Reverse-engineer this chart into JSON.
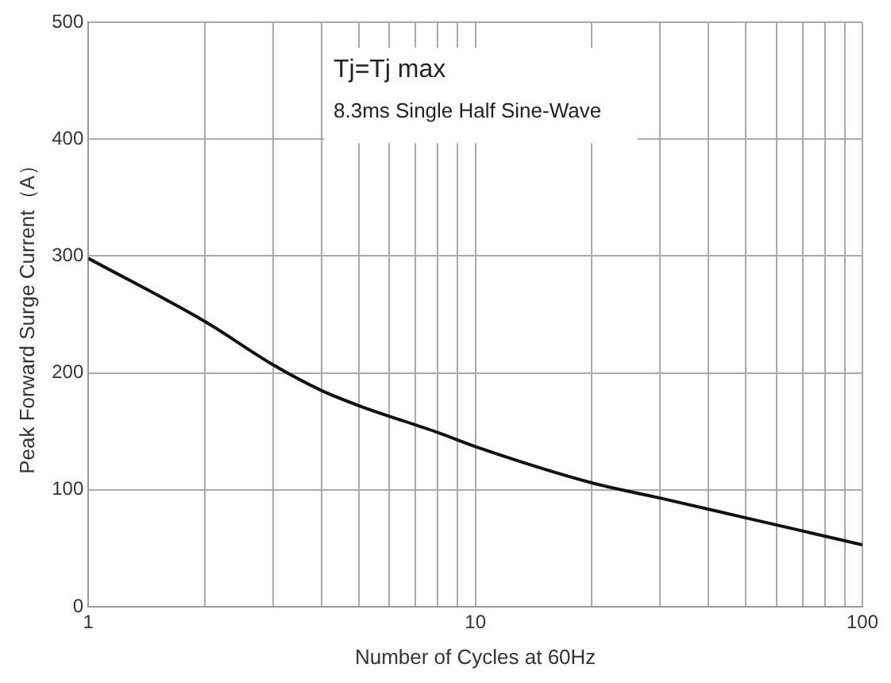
{
  "chart_data": {
    "type": "line",
    "xlabel": "Number of Cycles at 60Hz",
    "ylabel": "Peak Forward Surge Current（A）",
    "annotations": [
      "Tj=Tj max",
      "8.3ms Single Half Sine-Wave"
    ],
    "series": [
      {
        "color": "#111111",
        "x": [
          1,
          2,
          3,
          4,
          5,
          8,
          10,
          20,
          30,
          50,
          100
        ],
        "values": [
          298,
          244,
          207,
          185,
          172,
          149,
          137,
          106,
          93,
          76,
          53
        ]
      }
    ],
    "xlim": [
      1,
      100
    ],
    "ylim": [
      0,
      500
    ],
    "xticks": [
      1,
      {
        "value": 2,
        "label": null
      },
      {
        "value": 3,
        "label": null
      },
      {
        "value": 4,
        "label": null
      },
      {
        "value": 5,
        "label": null
      },
      {
        "value": 6,
        "label": null
      },
      {
        "value": 7,
        "label": null
      },
      {
        "value": 8,
        "label": null
      },
      {
        "value": 9,
        "label": null
      },
      10,
      {
        "value": 20,
        "label": null
      },
      {
        "value": 30,
        "label": null
      },
      {
        "value": 40,
        "label": null
      },
      {
        "value": 50,
        "label": null
      },
      {
        "value": 60,
        "label": null
      },
      {
        "value": 70,
        "label": null
      },
      {
        "value": 80,
        "label": null
      },
      {
        "value": 90,
        "label": null
      },
      100
    ],
    "yticks": [
      0,
      100,
      200,
      300,
      400,
      500
    ],
    "log": "x",
    "grid": true,
    "legend": false,
    "marker": "none",
    "line_style": "solid"
  }
}
